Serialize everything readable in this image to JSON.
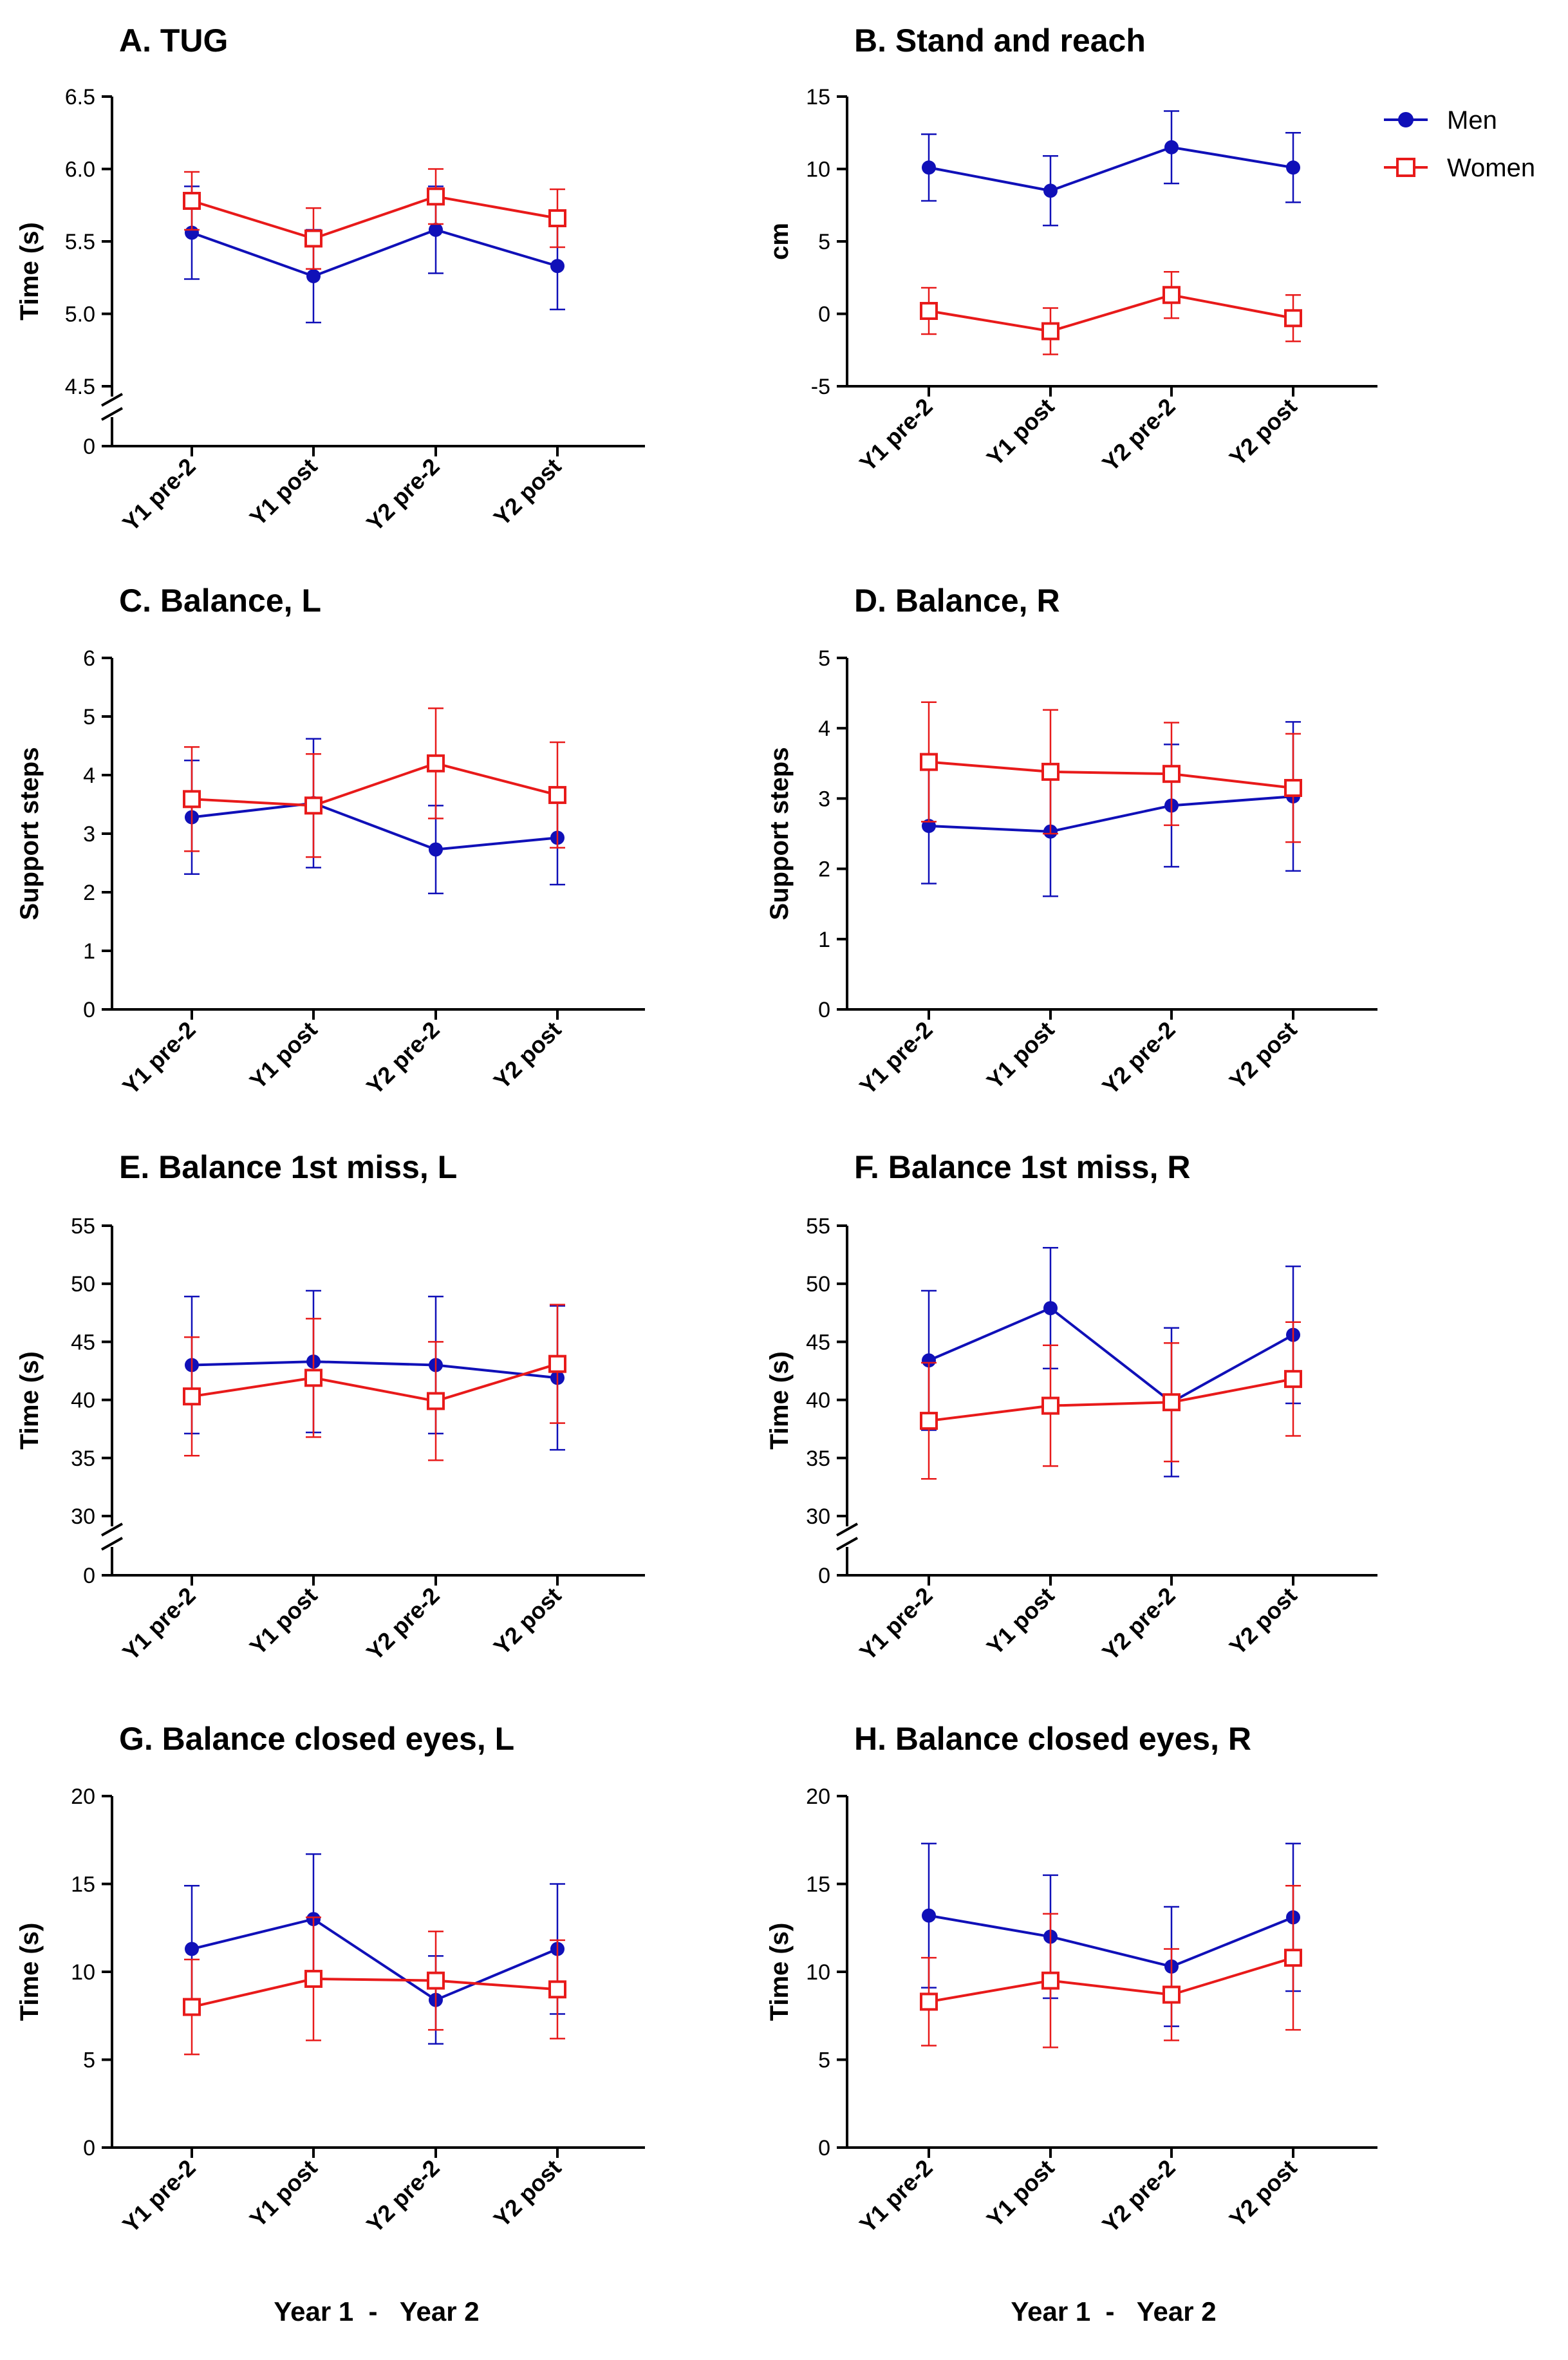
{
  "legend": [
    {
      "name": "Men",
      "color": "#1010b8",
      "marker": "circle"
    },
    {
      "name": "Women",
      "color": "#e81a1a",
      "marker": "square"
    }
  ],
  "footer": {
    "left": "Year 1  -   Year 2",
    "right": "Year 1  -   Year 2"
  },
  "chart_data": [
    {
      "id": "A",
      "type": "line",
      "title": "A. TUG",
      "ylabel": "Time (s)",
      "categories": [
        "Y1 pre-2",
        "Y1 post",
        "Y2 pre-2",
        "Y2 post"
      ],
      "ylim": [
        4.5,
        6.5
      ],
      "yticks": [
        "4.5",
        "5.0",
        "5.5",
        "6.0",
        "6.5"
      ],
      "axis_break": true,
      "zero_label": "0",
      "series": [
        {
          "name": "Men",
          "values": [
            5.56,
            5.26,
            5.58,
            5.33
          ],
          "err": [
            0.32,
            0.32,
            0.3,
            0.3
          ]
        },
        {
          "name": "Women",
          "values": [
            5.78,
            5.52,
            5.81,
            5.66
          ],
          "err": [
            0.2,
            0.21,
            0.19,
            0.2
          ]
        }
      ]
    },
    {
      "id": "B",
      "type": "line",
      "title": "B. Stand and reach",
      "ylabel": "cm",
      "categories": [
        "Y1 pre-2",
        "Y1 post",
        "Y2 pre-2",
        "Y2 post"
      ],
      "ylim": [
        -5,
        15
      ],
      "yticks": [
        "-5",
        "0",
        "5",
        "10",
        "15"
      ],
      "axis_break": false,
      "series": [
        {
          "name": "Men",
          "values": [
            10.1,
            8.5,
            11.5,
            10.1
          ],
          "err": [
            2.3,
            2.4,
            2.5,
            2.4
          ]
        },
        {
          "name": "Women",
          "values": [
            0.2,
            -1.2,
            1.3,
            -0.3
          ],
          "err": [
            1.6,
            1.6,
            1.6,
            1.6
          ]
        }
      ]
    },
    {
      "id": "C",
      "type": "line",
      "title": "C. Balance, L",
      "ylabel": "Support steps",
      "categories": [
        "Y1 pre-2",
        "Y1 post",
        "Y2 pre-2",
        "Y2 post"
      ],
      "ylim": [
        0,
        6
      ],
      "yticks": [
        "0",
        "1",
        "2",
        "3",
        "4",
        "5",
        "6"
      ],
      "axis_break": false,
      "series": [
        {
          "name": "Men",
          "values": [
            3.28,
            3.52,
            2.73,
            2.93
          ],
          "err": [
            0.97,
            1.1,
            0.75,
            0.8
          ]
        },
        {
          "name": "Women",
          "values": [
            3.59,
            3.48,
            4.2,
            3.66
          ],
          "err": [
            0.89,
            0.88,
            0.94,
            0.9
          ]
        }
      ]
    },
    {
      "id": "D",
      "type": "line",
      "title": "D. Balance, R",
      "ylabel": "Support steps",
      "categories": [
        "Y1 pre-2",
        "Y1 post",
        "Y2 pre-2",
        "Y2 post"
      ],
      "ylim": [
        0,
        5
      ],
      "yticks": [
        "0",
        "1",
        "2",
        "3",
        "4",
        "5"
      ],
      "axis_break": false,
      "series": [
        {
          "name": "Men",
          "values": [
            2.61,
            2.53,
            2.9,
            3.03
          ],
          "err": [
            0.82,
            0.92,
            0.87,
            1.06
          ]
        },
        {
          "name": "Women",
          "values": [
            3.52,
            3.38,
            3.35,
            3.15
          ],
          "err": [
            0.85,
            0.88,
            0.73,
            0.77
          ]
        }
      ]
    },
    {
      "id": "E",
      "type": "line",
      "title": "E. Balance 1st miss, L",
      "ylabel": "Time (s)",
      "categories": [
        "Y1 pre-2",
        "Y1 post",
        "Y2 pre-2",
        "Y2 post"
      ],
      "ylim": [
        30,
        55
      ],
      "yticks": [
        "30",
        "35",
        "40",
        "45",
        "50",
        "55"
      ],
      "axis_break": true,
      "zero_label": "0",
      "series": [
        {
          "name": "Men",
          "values": [
            43.0,
            43.3,
            43.0,
            41.9
          ],
          "err": [
            5.9,
            6.1,
            5.9,
            6.2
          ]
        },
        {
          "name": "Women",
          "values": [
            40.3,
            41.9,
            39.9,
            43.1
          ],
          "err": [
            5.1,
            5.1,
            5.1,
            5.1
          ]
        }
      ]
    },
    {
      "id": "F",
      "type": "line",
      "title": "F. Balance 1st miss, R",
      "ylabel": "Time (s)",
      "categories": [
        "Y1 pre-2",
        "Y1 post",
        "Y2 pre-2",
        "Y2 post"
      ],
      "ylim": [
        30,
        55
      ],
      "yticks": [
        "30",
        "35",
        "40",
        "45",
        "50",
        "55"
      ],
      "axis_break": true,
      "zero_label": "0",
      "series": [
        {
          "name": "Men",
          "values": [
            43.4,
            47.9,
            39.8,
            45.6
          ],
          "err": [
            6.0,
            5.2,
            6.4,
            5.9
          ]
        },
        {
          "name": "Women",
          "values": [
            38.2,
            39.5,
            39.8,
            41.8
          ],
          "err": [
            5.0,
            5.2,
            5.1,
            4.9
          ]
        }
      ]
    },
    {
      "id": "G",
      "type": "line",
      "title": "G. Balance closed eyes,  L",
      "ylabel": "Time (s)",
      "categories": [
        "Y1 pre-2",
        "Y1 post",
        "Y2 pre-2",
        "Y2 post"
      ],
      "ylim": [
        0,
        20
      ],
      "yticks": [
        "0",
        "5",
        "10",
        "15",
        "20"
      ],
      "axis_break": false,
      "series": [
        {
          "name": "Men",
          "values": [
            11.3,
            13.0,
            8.4,
            11.3
          ],
          "err": [
            3.6,
            3.7,
            2.5,
            3.7
          ]
        },
        {
          "name": "Women",
          "values": [
            8.0,
            9.6,
            9.5,
            9.0
          ],
          "err": [
            2.7,
            3.5,
            2.8,
            2.8
          ]
        }
      ]
    },
    {
      "id": "H",
      "type": "line",
      "title": "H. Balance closed eyes, R",
      "ylabel": "Time (s)",
      "categories": [
        "Y1 pre-2",
        "Y1 post",
        "Y2 pre-2",
        "Y2 post"
      ],
      "ylim": [
        0,
        20
      ],
      "yticks": [
        "0",
        "5",
        "10",
        "15",
        "20"
      ],
      "axis_break": false,
      "series": [
        {
          "name": "Men",
          "values": [
            13.2,
            12.0,
            10.3,
            13.1
          ],
          "err": [
            4.1,
            3.5,
            3.4,
            4.2
          ]
        },
        {
          "name": "Women",
          "values": [
            8.3,
            9.5,
            8.7,
            10.8
          ],
          "err": [
            2.5,
            3.8,
            2.6,
            4.1
          ]
        }
      ]
    }
  ]
}
